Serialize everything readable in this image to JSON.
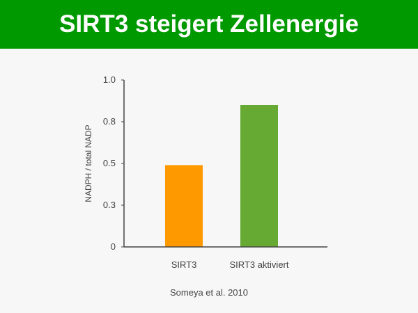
{
  "header": {
    "title": "SIRT3 steigert Zellenergie",
    "background": "#009900"
  },
  "chart_data": {
    "type": "bar",
    "title": "",
    "ylabel": "NADPH / total NADP",
    "xlabel": "",
    "categories": [
      "SIRT3",
      "SIRT3 aktiviert"
    ],
    "values": [
      0.49,
      0.85
    ],
    "colors": [
      "#ff9900",
      "#66aa33"
    ],
    "ylim": [
      0,
      1.0
    ],
    "yticks": [
      0,
      0.25,
      0.5,
      0.75,
      1.0
    ],
    "ytick_labels": [
      "0",
      "0.3",
      "0.5",
      "0.8",
      "1.0"
    ],
    "grid": false,
    "legend": "none"
  },
  "footer": {
    "source": "Someya et al. 2010"
  }
}
